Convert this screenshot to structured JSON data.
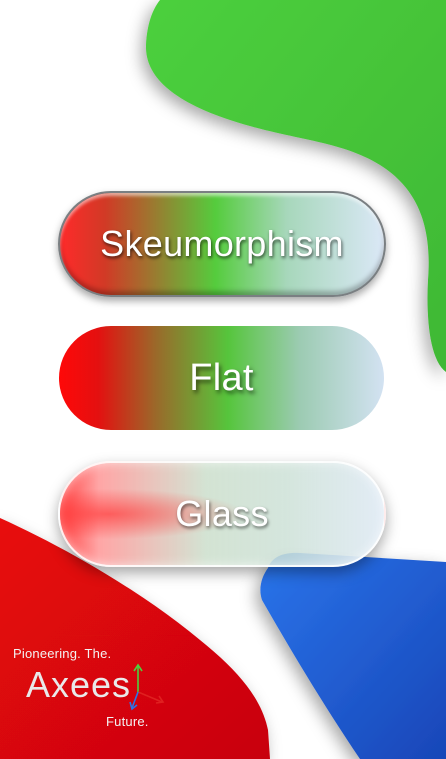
{
  "buttons": {
    "skeuomorphism": "Skeumorphism",
    "flat": "Flat",
    "glass": "Glass"
  },
  "logo": {
    "tagline_top": "Pioneering. The.",
    "wordmark": "Axees",
    "tagline_bottom": "Future.",
    "axis_icon": "axis-arrows-icon"
  },
  "colors": {
    "blob_green": "#48c83c",
    "blob_red": "#e0060a",
    "blob_blue": "#1f5fd8",
    "accent_red": "#ff1a1a",
    "accent_green": "#55cc3d",
    "accent_light_blue": "#dbe8f7"
  }
}
